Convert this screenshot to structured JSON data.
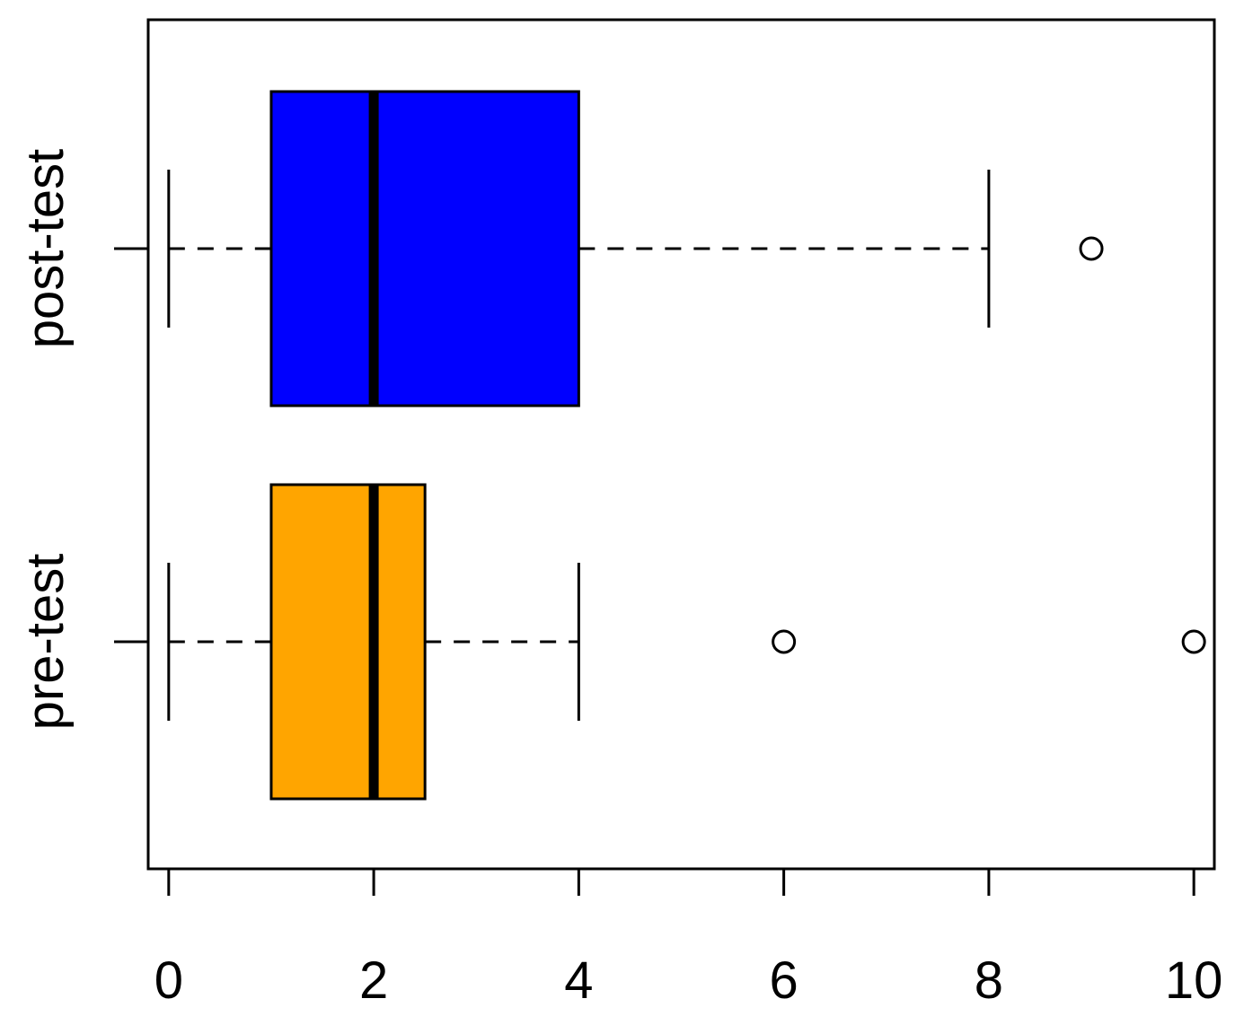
{
  "chart_data": {
    "type": "boxplot",
    "orientation": "horizontal",
    "title": "",
    "xlabel": "",
    "ylabel": "",
    "xlim": [
      -0.2,
      10.2
    ],
    "x_ticks": [
      0,
      2,
      4,
      6,
      8,
      10
    ],
    "x_tick_labels": [
      "0",
      "2",
      "4",
      "6",
      "8",
      "10"
    ],
    "grid": false,
    "series": [
      {
        "name": "pre-test",
        "color": "#FFA500",
        "whisker_low": 0,
        "q1": 1,
        "median": 2,
        "q3": 2.5,
        "whisker_high": 4,
        "outliers": [
          6,
          10
        ]
      },
      {
        "name": "post-test",
        "color": "#0000FF",
        "whisker_low": 0,
        "q1": 1,
        "median": 2,
        "q3": 4,
        "whisker_high": 8,
        "outliers": [
          9
        ]
      }
    ]
  }
}
